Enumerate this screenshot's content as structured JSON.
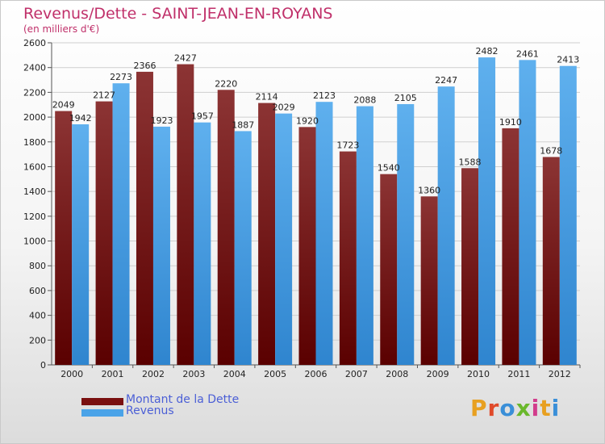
{
  "title": "Revenus/Dette - SAINT-JEAN-EN-ROYANS",
  "subtitle": "(en milliers d'€)",
  "legend": [
    {
      "label": "Montant de la Dette",
      "color": "#7a1010"
    },
    {
      "label": "Revenus",
      "color": "#4aa3e8"
    }
  ],
  "logo": {
    "text": "Proxiti",
    "colors": [
      "#e8a020",
      "#e04a2a",
      "#3a8fd8",
      "#6ab82c",
      "#d23c8c",
      "#e8a020",
      "#3a8fd8"
    ]
  },
  "chart_data": {
    "type": "bar",
    "title": "Revenus/Dette - SAINT-JEAN-EN-ROYANS",
    "ylabel": "(en milliers d'€)",
    "xlabel": "",
    "categories": [
      "2000",
      "2001",
      "2002",
      "2003",
      "2004",
      "2005",
      "2006",
      "2007",
      "2008",
      "2009",
      "2010",
      "2011",
      "2012"
    ],
    "series": [
      {
        "name": "Montant de la Dette",
        "color": "#7a1010",
        "values": [
          2049,
          2127,
          2366,
          2427,
          2220,
          2114,
          1920,
          1723,
          1540,
          1360,
          1588,
          1910,
          1678
        ]
      },
      {
        "name": "Revenus",
        "color": "#4aa3e8",
        "values": [
          1942,
          2273,
          1923,
          1957,
          1887,
          2029,
          2123,
          2088,
          2105,
          2247,
          2482,
          2461,
          2413
        ]
      }
    ],
    "ylim": [
      0,
      2600
    ],
    "yticks": [
      0,
      200,
      400,
      600,
      800,
      1000,
      1200,
      1400,
      1600,
      1800,
      2000,
      2200,
      2400,
      2600
    ],
    "grid": true,
    "legend_position": "bottom-left"
  }
}
